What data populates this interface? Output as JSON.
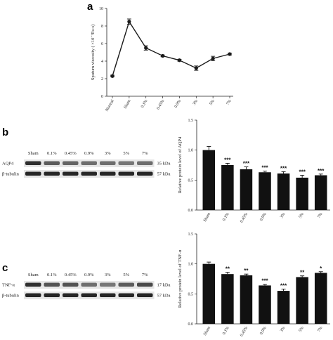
{
  "panels": {
    "a": "a",
    "b": "b",
    "c": "c"
  },
  "chart_data": [
    {
      "id": "a",
      "type": "line",
      "categories": [
        "Normal",
        "Sham",
        "0.1%",
        "0.45%",
        "0.9%",
        "3%",
        "5%",
        "7%"
      ],
      "values": [
        2.3,
        8.5,
        5.5,
        4.6,
        4.1,
        3.2,
        4.3,
        4.8
      ],
      "errors": [
        0.1,
        0.3,
        0.25,
        0.1,
        0.1,
        0.25,
        0.25,
        0.1
      ],
      "ylabel": "Sputum viscosity ( ×10⁻³Pa·s)",
      "ylim": [
        0,
        10
      ],
      "yticks": [
        "0",
        "2",
        "4",
        "6",
        "8",
        "10"
      ],
      "color": "#1a1a1a"
    },
    {
      "id": "b",
      "type": "bar",
      "categories": [
        "Sham",
        "0.1%",
        "0.45%",
        "0.9%",
        "3%",
        "5%",
        "7%"
      ],
      "values": [
        1.0,
        0.75,
        0.68,
        0.63,
        0.61,
        0.54,
        0.58
      ],
      "errors": [
        0.06,
        0.03,
        0.04,
        0.02,
        0.03,
        0.04,
        0.02
      ],
      "significance": [
        "",
        "***",
        "***",
        "***",
        "***",
        "***",
        "***"
      ],
      "ylabel": "Relative protein level of AQP4",
      "ylim": [
        0,
        1.5
      ],
      "yticks": [
        "0.0",
        "0.5",
        "1.0",
        "1.5"
      ],
      "color": "#111111"
    },
    {
      "id": "c",
      "type": "bar",
      "categories": [
        "Sham",
        "0.1%",
        "0.45%",
        "0.9%",
        "3%",
        "5%",
        "7%"
      ],
      "values": [
        1.0,
        0.83,
        0.81,
        0.64,
        0.55,
        0.78,
        0.85
      ],
      "errors": [
        0.03,
        0.03,
        0.02,
        0.02,
        0.03,
        0.02,
        0.02
      ],
      "significance": [
        "",
        "**",
        "**",
        "***",
        "***",
        "**",
        "*"
      ],
      "ylabel": "Relative protein level of TNF-α",
      "ylim": [
        0,
        1.5
      ],
      "yticks": [
        "0.0",
        "0.5",
        "1.0",
        "1.5"
      ],
      "color": "#111111"
    }
  ],
  "blots": {
    "b": {
      "lanes": [
        "Sham",
        "0.1%",
        "0.45%",
        "0.9%",
        "3%",
        "5%",
        "7%"
      ],
      "rows": [
        {
          "protein": "AQP4",
          "size": "35 kDa",
          "intensities": [
            0.85,
            0.6,
            0.55,
            0.5,
            0.5,
            0.45,
            0.5
          ]
        },
        {
          "protein": "β-tubulin",
          "size": "57 kDa",
          "intensities": [
            0.9,
            0.9,
            0.9,
            0.9,
            0.9,
            0.9,
            0.9
          ]
        }
      ]
    },
    "c": {
      "lanes": [
        "Sham",
        "0.1%",
        "0.45%",
        "0.9%",
        "3%",
        "5%",
        "7%"
      ],
      "rows": [
        {
          "protein": "TNF-α",
          "size": "17 kDa",
          "intensities": [
            0.85,
            0.65,
            0.65,
            0.5,
            0.45,
            0.6,
            0.7
          ]
        },
        {
          "protein": "β-tubulin",
          "size": "57 kDa",
          "intensities": [
            0.9,
            0.9,
            0.9,
            0.9,
            0.9,
            0.9,
            0.9
          ]
        }
      ]
    }
  }
}
